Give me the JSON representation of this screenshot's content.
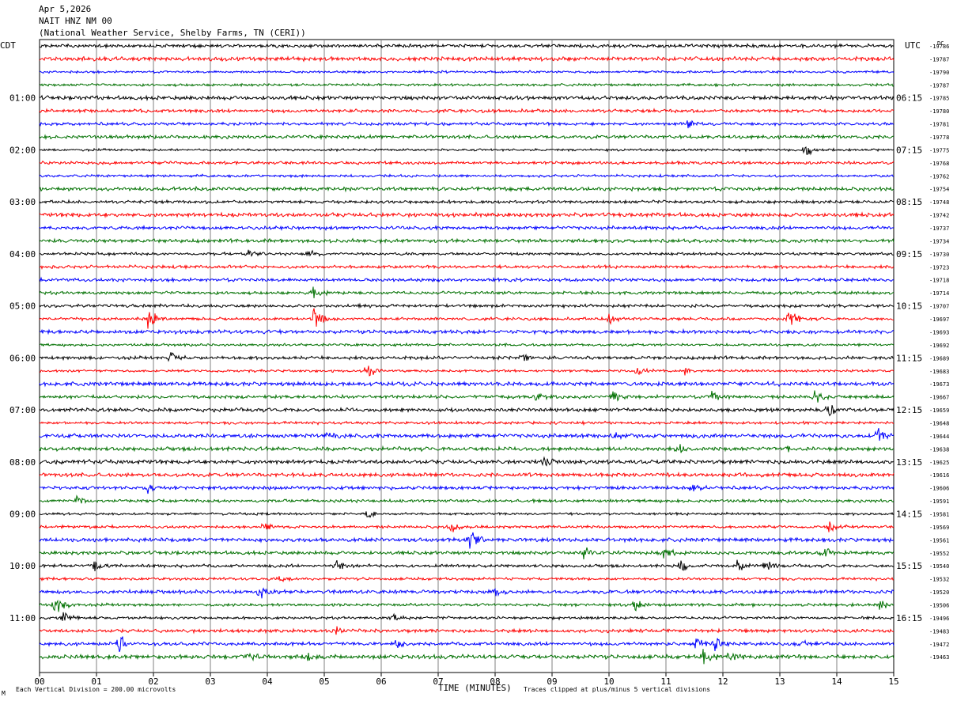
{
  "header": {
    "date": "Apr 5,2026",
    "station": "NAIT HNZ NM 00",
    "network": "(National Weather Service, Shelby Farms, TN (CERI))"
  },
  "chart_data": {
    "type": "line",
    "left_axis_label": "CDT",
    "right_axis_label": "UTC",
    "dc_label": "DC",
    "xlabel": "TIME (MINUTES)",
    "xlim": [
      0,
      15
    ],
    "x_ticks": [
      "00",
      "01",
      "02",
      "03",
      "04",
      "05",
      "06",
      "07",
      "08",
      "09",
      "10",
      "11",
      "12",
      "13",
      "14",
      "15"
    ],
    "trace_count": 48,
    "trace_colors": [
      "#000000",
      "#ff0000",
      "#0000ff",
      "#007000"
    ],
    "left_time_labels": [
      {
        "trace": 4,
        "label": "01:00"
      },
      {
        "trace": 8,
        "label": "02:00"
      },
      {
        "trace": 12,
        "label": "03:00"
      },
      {
        "trace": 16,
        "label": "04:00"
      },
      {
        "trace": 20,
        "label": "05:00"
      },
      {
        "trace": 24,
        "label": "06:00"
      },
      {
        "trace": 28,
        "label": "07:00"
      },
      {
        "trace": 32,
        "label": "08:00"
      },
      {
        "trace": 36,
        "label": "09:00"
      },
      {
        "trace": 40,
        "label": "10:00"
      },
      {
        "trace": 44,
        "label": "11:00"
      }
    ],
    "right_time_labels": [
      {
        "trace": 4,
        "label": "06:15"
      },
      {
        "trace": 8,
        "label": "07:15"
      },
      {
        "trace": 12,
        "label": "08:15"
      },
      {
        "trace": 16,
        "label": "09:15"
      },
      {
        "trace": 20,
        "label": "10:15"
      },
      {
        "trace": 24,
        "label": "11:15"
      },
      {
        "trace": 28,
        "label": "12:15"
      },
      {
        "trace": 32,
        "label": "13:15"
      },
      {
        "trace": 36,
        "label": "14:15"
      },
      {
        "trace": 40,
        "label": "15:15"
      },
      {
        "trace": 44,
        "label": "16:15"
      }
    ],
    "dc_offsets": [
      "-19786",
      "-19787",
      "-19790",
      "-19787",
      "-19785",
      "-19780",
      "-19781",
      "-19778",
      "-19775",
      "-19768",
      "-19762",
      "-19754",
      "-19748",
      "-19742",
      "-19737",
      "-19734",
      "-19730",
      "-19723",
      "-19718",
      "-19714",
      "-19707",
      "-19697",
      "-19693",
      "-19692",
      "-19689",
      "-19683",
      "-19673",
      "-19667",
      "-19659",
      "-19648",
      "-19644",
      "-19638",
      "-19625",
      "-19616",
      "-19606",
      "-19591",
      "-19581",
      "-19569",
      "-19561",
      "-19552",
      "-19540",
      "-19532",
      "-19520",
      "-19506",
      "-19496",
      "-19483",
      "-19472",
      "-19463"
    ],
    "events": [
      {
        "trace": 6,
        "minute": 11.35,
        "amp": 0.6
      },
      {
        "trace": 8,
        "minute": 13.45,
        "amp": 0.9
      },
      {
        "trace": 16,
        "minute": 3.65,
        "amp": 0.8
      },
      {
        "trace": 16,
        "minute": 4.7,
        "amp": 0.8
      },
      {
        "trace": 19,
        "minute": 4.8,
        "amp": 0.8
      },
      {
        "trace": 21,
        "minute": 1.9,
        "amp": 1.4
      },
      {
        "trace": 21,
        "minute": 4.8,
        "amp": 1.6
      },
      {
        "trace": 21,
        "minute": 10.0,
        "amp": 0.8
      },
      {
        "trace": 21,
        "minute": 13.15,
        "amp": 1.3
      },
      {
        "trace": 24,
        "minute": 2.3,
        "amp": 0.7
      },
      {
        "trace": 24,
        "minute": 8.45,
        "amp": 0.6
      },
      {
        "trace": 25,
        "minute": 5.75,
        "amp": 1.3
      },
      {
        "trace": 25,
        "minute": 10.5,
        "amp": 0.6
      },
      {
        "trace": 25,
        "minute": 11.3,
        "amp": 0.6
      },
      {
        "trace": 27,
        "minute": 8.7,
        "amp": 0.6
      },
      {
        "trace": 27,
        "minute": 10.05,
        "amp": 0.8
      },
      {
        "trace": 27,
        "minute": 11.8,
        "amp": 0.9
      },
      {
        "trace": 27,
        "minute": 13.6,
        "amp": 0.9
      },
      {
        "trace": 28,
        "minute": 13.85,
        "amp": 0.9
      },
      {
        "trace": 30,
        "minute": 5.0,
        "amp": 0.7
      },
      {
        "trace": 30,
        "minute": 10.1,
        "amp": 0.6
      },
      {
        "trace": 30,
        "minute": 14.7,
        "amp": 1.2
      },
      {
        "trace": 31,
        "minute": 11.2,
        "amp": 0.8
      },
      {
        "trace": 31,
        "minute": 13.1,
        "amp": 0.7
      },
      {
        "trace": 32,
        "minute": 8.85,
        "amp": 0.9
      },
      {
        "trace": 34,
        "minute": 1.9,
        "amp": 0.6
      },
      {
        "trace": 34,
        "minute": 11.45,
        "amp": 0.7
      },
      {
        "trace": 35,
        "minute": 0.65,
        "amp": 0.7
      },
      {
        "trace": 36,
        "minute": 5.75,
        "amp": 0.6
      },
      {
        "trace": 37,
        "minute": 3.95,
        "amp": 0.8
      },
      {
        "trace": 37,
        "minute": 7.2,
        "amp": 0.9
      },
      {
        "trace": 37,
        "minute": 13.85,
        "amp": 0.9
      },
      {
        "trace": 38,
        "minute": 7.55,
        "amp": 1.5
      },
      {
        "trace": 39,
        "minute": 9.55,
        "amp": 0.9
      },
      {
        "trace": 39,
        "minute": 10.95,
        "amp": 0.8
      },
      {
        "trace": 39,
        "minute": 13.75,
        "amp": 0.8
      },
      {
        "trace": 40,
        "minute": 0.95,
        "amp": 0.9
      },
      {
        "trace": 40,
        "minute": 5.2,
        "amp": 0.8
      },
      {
        "trace": 40,
        "minute": 11.25,
        "amp": 0.9
      },
      {
        "trace": 40,
        "minute": 12.25,
        "amp": 0.8
      },
      {
        "trace": 40,
        "minute": 12.75,
        "amp": 0.9
      },
      {
        "trace": 41,
        "minute": 4.2,
        "amp": 0.6
      },
      {
        "trace": 42,
        "minute": 3.85,
        "amp": 0.9
      },
      {
        "trace": 42,
        "minute": 8.0,
        "amp": 0.6
      },
      {
        "trace": 43,
        "minute": 0.25,
        "amp": 1.5
      },
      {
        "trace": 43,
        "minute": 10.45,
        "amp": 1.0
      },
      {
        "trace": 43,
        "minute": 14.75,
        "amp": 0.7
      },
      {
        "trace": 44,
        "minute": 0.4,
        "amp": 0.8
      },
      {
        "trace": 44,
        "minute": 6.2,
        "amp": 0.7
      },
      {
        "trace": 45,
        "minute": 5.2,
        "amp": 0.5
      },
      {
        "trace": 46,
        "minute": 1.4,
        "amp": 1.4
      },
      {
        "trace": 46,
        "minute": 6.25,
        "amp": 0.6
      },
      {
        "trace": 46,
        "minute": 11.5,
        "amp": 0.9
      },
      {
        "trace": 46,
        "minute": 11.85,
        "amp": 0.9
      },
      {
        "trace": 46,
        "minute": 13.35,
        "amp": 0.6
      },
      {
        "trace": 47,
        "minute": 3.65,
        "amp": 0.8
      },
      {
        "trace": 47,
        "minute": 4.7,
        "amp": 0.8
      },
      {
        "trace": 47,
        "minute": 11.65,
        "amp": 1.0
      },
      {
        "trace": 47,
        "minute": 12.1,
        "amp": 0.8
      }
    ],
    "footer_left": "Each Vertical Division =  200.00 microvolts",
    "footer_right": "Traces clipped at plus/minus 5 vertical divisions",
    "footer_mark": "M"
  }
}
